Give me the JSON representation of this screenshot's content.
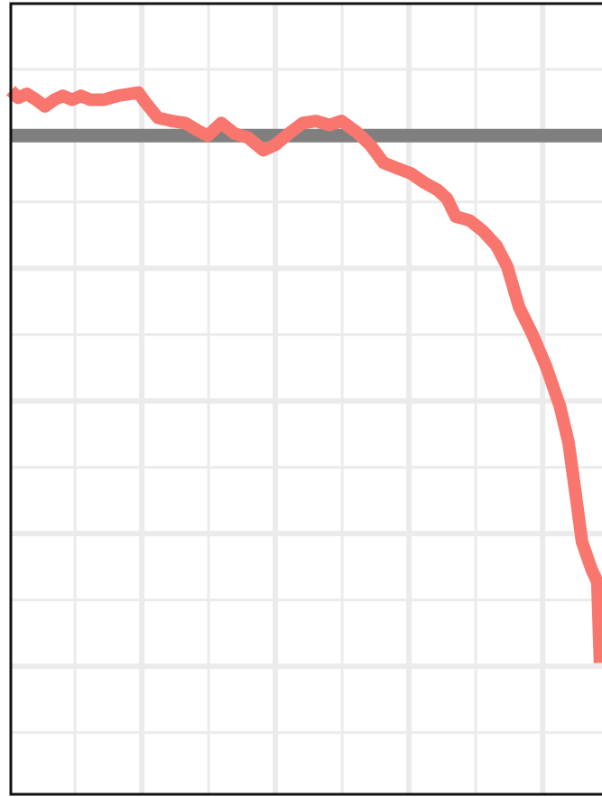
{
  "chart_data": {
    "type": "line",
    "x": [
      0.04,
      0.15,
      0.28,
      0.42,
      0.55,
      0.69,
      0.82,
      0.96,
      1.09,
      1.23,
      1.43,
      1.64,
      1.95,
      2.04,
      2.24,
      2.45,
      2.65,
      2.85,
      2.99,
      3.19,
      3.39,
      3.59,
      3.82,
      4.0,
      4.2,
      4.41,
      4.61,
      4.81,
      4.99,
      5.22,
      5.42,
      5.62,
      5.82,
      6.03,
      6.23,
      6.43,
      6.57,
      6.7,
      6.91,
      7.11,
      7.31,
      7.47,
      7.65,
      7.85,
      8.05,
      8.26,
      8.39,
      8.5,
      8.59,
      8.73,
      8.82,
      8.86
    ],
    "values": [
      0.68,
      0.57,
      0.63,
      0.54,
      0.44,
      0.54,
      0.6,
      0.54,
      0.6,
      0.54,
      0.54,
      0.6,
      0.65,
      0.52,
      0.27,
      0.22,
      0.19,
      0.07,
      0,
      0.19,
      0.03,
      -0.03,
      -0.22,
      -0.14,
      0.03,
      0.19,
      0.22,
      0.16,
      0.22,
      0.05,
      -0.14,
      -0.41,
      -0.49,
      -0.57,
      -0.71,
      -0.82,
      -0.95,
      -1.22,
      -1.28,
      -1.44,
      -1.66,
      -1.97,
      -2.59,
      -3.0,
      -3.47,
      -4.08,
      -4.63,
      -5.44,
      -6.12,
      -6.53,
      -6.73,
      -7.95
    ],
    "color": "#f8766d",
    "xlim": [
      0.04,
      8.89
    ],
    "ylim": [
      -9.93,
      1.99
    ],
    "xticks": [
      1,
      2,
      3,
      4,
      5,
      6,
      7,
      8
    ],
    "yticks": [
      1,
      0,
      -1,
      -2,
      -3,
      -4,
      -5,
      -6,
      -7,
      -8,
      -9
    ],
    "grid": true,
    "reference_line": {
      "value": 0,
      "color": "#7f7f7f"
    }
  }
}
